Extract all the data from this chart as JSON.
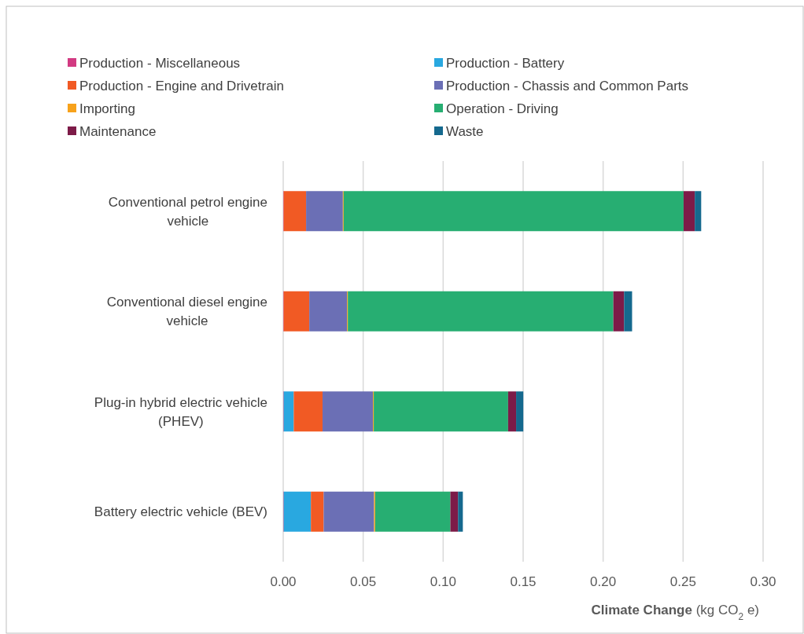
{
  "chart_data": {
    "type": "bar",
    "orientation": "horizontal",
    "stacked": true,
    "categories": [
      "Conventional petrol engine vehicle",
      "Conventional diesel engine vehicle",
      "Plug-in hybrid electric vehicle (PHEV)",
      "Battery electric vehicle (BEV)"
    ],
    "series": [
      {
        "name": "Production - Miscellaneous",
        "color": "#d23a82",
        "values": [
          0.0003,
          0.0003,
          0.0003,
          0.0003
        ]
      },
      {
        "name": "Production - Battery",
        "color": "#29a8e0",
        "values": [
          0,
          0,
          0.0063,
          0.017
        ]
      },
      {
        "name": "Production - Engine and Drivetrain",
        "color": "#f15a24",
        "values": [
          0.014,
          0.016,
          0.018,
          0.008
        ]
      },
      {
        "name": "Production - Chassis and Common Parts",
        "color": "#6b6fb5",
        "values": [
          0.023,
          0.0236,
          0.0315,
          0.0315
        ]
      },
      {
        "name": "Importing",
        "color": "#f7a21b",
        "values": [
          0.0005,
          0.0005,
          0.0005,
          0.0007
        ]
      },
      {
        "name": "Operation - Driving",
        "color": "#27ae72",
        "values": [
          0.2125,
          0.166,
          0.084,
          0.047
        ]
      },
      {
        "name": "Maintenance",
        "color": "#7d1b48",
        "values": [
          0.007,
          0.0067,
          0.005,
          0.0048
        ]
      },
      {
        "name": "Waste",
        "color": "#15698e",
        "values": [
          0.004,
          0.005,
          0.0045,
          0.003
        ]
      }
    ],
    "xlim": [
      0,
      0.3
    ],
    "xticks": [
      {
        "value": 0,
        "label": "0.00"
      },
      {
        "value": 0.05,
        "label": "0.05"
      },
      {
        "value": 0.1,
        "label": "0.10"
      },
      {
        "value": 0.15,
        "label": "0.15"
      },
      {
        "value": 0.2,
        "label": "0.20"
      },
      {
        "value": 0.25,
        "label": "0.25"
      },
      {
        "value": 0.3,
        "label": "0.30"
      }
    ],
    "xlabel": "Climate Change (kg CO$_{2}$ e)",
    "grid": "x",
    "legend": "top"
  }
}
